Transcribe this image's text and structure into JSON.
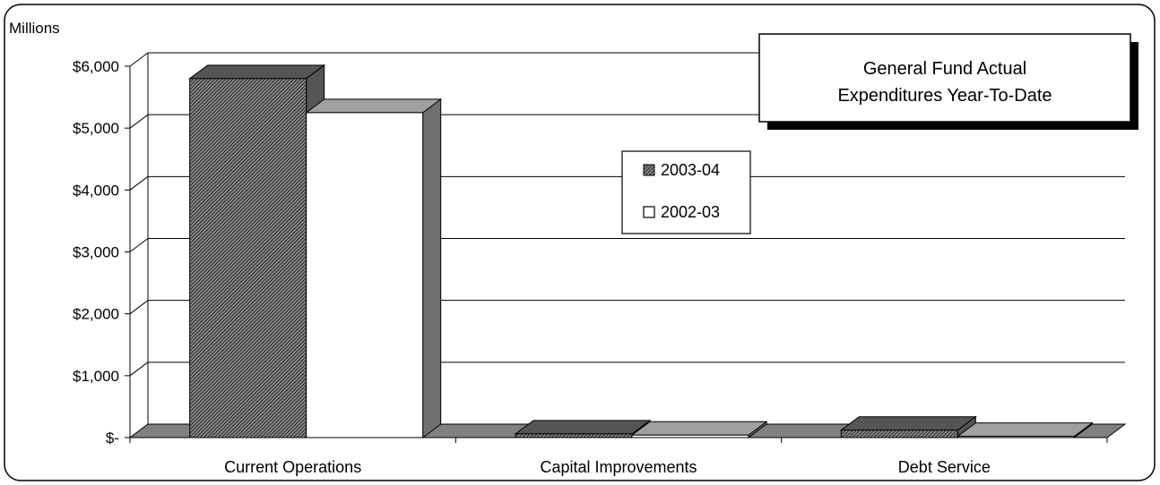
{
  "chart_data": {
    "type": "bar",
    "title_lines": [
      "General Fund Actual",
      "Expenditures Year-To-Date"
    ],
    "unit_label": "Millions",
    "categories": [
      "Current Operations",
      "Capital Improvements",
      "Debt Service"
    ],
    "series": [
      {
        "name": "2003-04",
        "values": [
          5800,
          60,
          120
        ],
        "color": "#7a7a7a",
        "pattern": "hatched"
      },
      {
        "name": "2002-03",
        "values": [
          5250,
          40,
          20
        ],
        "color": "#ffffff",
        "pattern": "solid"
      }
    ],
    "y_ticks": [
      "$6,000",
      "$5,000",
      "$4,000",
      "$3,000",
      "$2,000",
      "$1,000",
      "$-"
    ],
    "ylim": [
      0,
      6000
    ],
    "grid": true,
    "legend_position": "center",
    "colors": {
      "floor": "#808080",
      "bar_side": "#707070",
      "dark_side": "#555555",
      "frame": "#000000"
    }
  }
}
